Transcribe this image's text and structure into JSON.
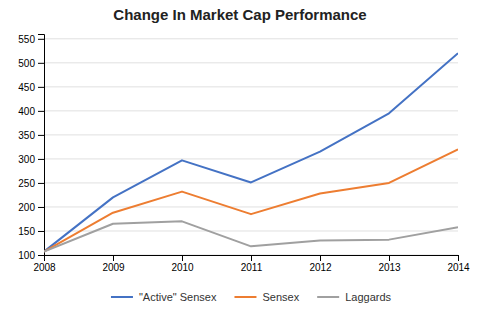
{
  "chart_data": {
    "type": "line",
    "title": "Change In Market Cap Performance",
    "x": [
      2008,
      2009,
      2010,
      2011,
      2012,
      2013,
      2014
    ],
    "series": [
      {
        "name": "\"Active\" Sensex",
        "color": "#4472C4",
        "values": [
          107,
          220,
          297,
          251,
          315,
          395,
          520
        ]
      },
      {
        "name": "Sensex",
        "color": "#ED7D31",
        "values": [
          107,
          188,
          232,
          185,
          228,
          250,
          320
        ]
      },
      {
        "name": "Laggards",
        "color": "#A0A0A0",
        "values": [
          107,
          165,
          170,
          118,
          130,
          132,
          158
        ]
      }
    ],
    "xlim": [
      2008,
      2014
    ],
    "xticks": [
      2008,
      2009,
      2010,
      2011,
      2012,
      2013,
      2014
    ],
    "ylim": [
      100,
      560
    ],
    "yticks": [
      100,
      150,
      200,
      250,
      300,
      350,
      400,
      450,
      500,
      550
    ],
    "grid": true,
    "legend": "bottom"
  }
}
